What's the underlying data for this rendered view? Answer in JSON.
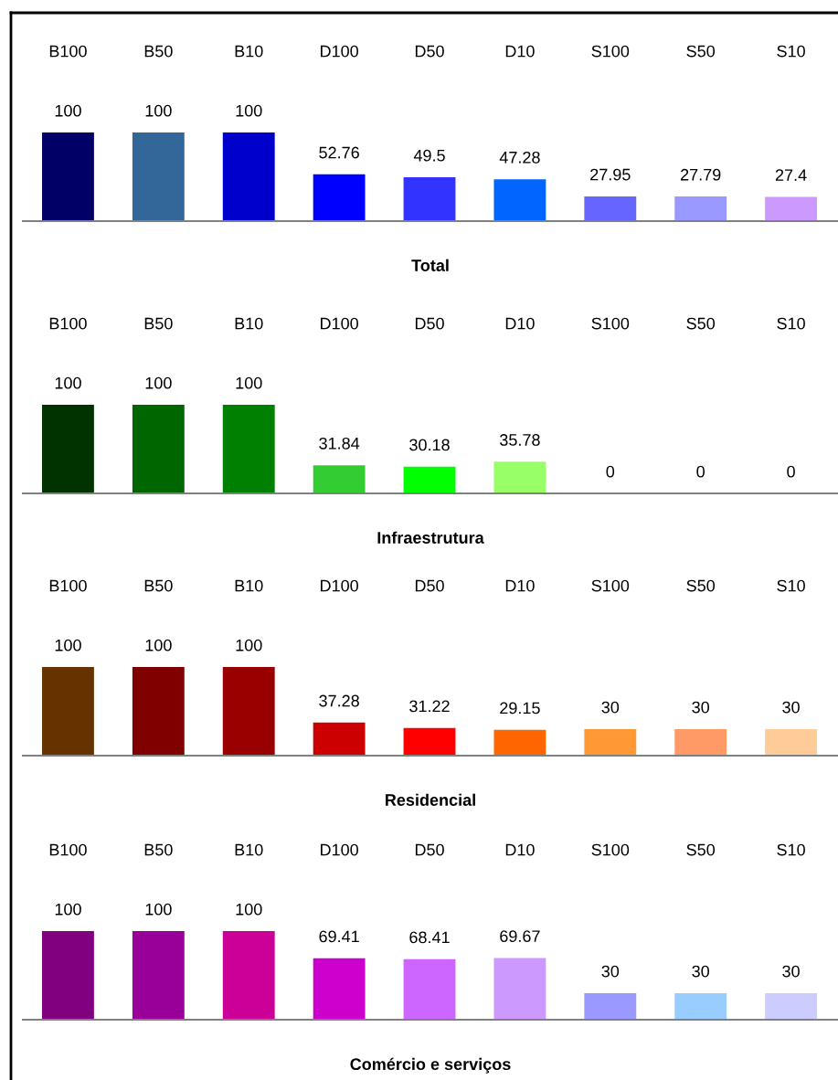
{
  "chart_data": [
    {
      "type": "bar",
      "xlabel": "Total",
      "categories": [
        "B100",
        "B50",
        "B10",
        "D100",
        "D50",
        "D10",
        "S100",
        "S50",
        "S10"
      ],
      "values": [
        100,
        100,
        100,
        52.76,
        49.5,
        47.28,
        27.95,
        27.79,
        27.4
      ],
      "colors": [
        "#000066",
        "#336699",
        "#0000cc",
        "#0000ff",
        "#3333ff",
        "#0066ff",
        "#6666ff",
        "#9999ff",
        "#cc99ff"
      ],
      "data_labels": true,
      "tick_labels": "x",
      "grid": false,
      "legend": false
    },
    {
      "type": "bar",
      "xlabel": "Infraestrutura",
      "categories": [
        "B100",
        "B50",
        "B10",
        "D100",
        "D50",
        "D10",
        "S100",
        "S50",
        "S10"
      ],
      "values": [
        100,
        100,
        100,
        31.84,
        30.18,
        35.78,
        0,
        0,
        0
      ],
      "colors": [
        "#003300",
        "#006600",
        "#008000",
        "#33cc33",
        "#00ff00",
        "#99ff66",
        null,
        null,
        null
      ],
      "data_labels": true,
      "tick_labels": "x",
      "grid": false,
      "legend": false
    },
    {
      "type": "bar",
      "xlabel": "Residencial",
      "categories": [
        "B100",
        "B50",
        "B10",
        "D100",
        "D50",
        "D10",
        "S100",
        "S50",
        "S10"
      ],
      "values": [
        100,
        100,
        100,
        37.28,
        31.22,
        29.15,
        30,
        30,
        30
      ],
      "colors": [
        "#663300",
        "#800000",
        "#990000",
        "#cc0000",
        "#ff0000",
        "#ff6600",
        "#ff9933",
        "#ff9966",
        "#ffcc99"
      ],
      "data_labels": true,
      "tick_labels": "x",
      "grid": false,
      "legend": false
    },
    {
      "type": "bar",
      "xlabel": "Comércio e serviços",
      "categories": [
        "B100",
        "B50",
        "B10",
        "D100",
        "D50",
        "D10",
        "S100",
        "S50",
        "S10"
      ],
      "values": [
        100,
        100,
        100,
        69.41,
        68.41,
        69.67,
        30,
        30,
        30
      ],
      "colors": [
        "#800080",
        "#990099",
        "#cc0099",
        "#cc00cc",
        "#cc66ff",
        "#cc99ff",
        "#9999ff",
        "#99ccff",
        "#ccccff"
      ],
      "data_labels": true,
      "tick_labels": "x",
      "grid": false,
      "legend": false
    }
  ]
}
